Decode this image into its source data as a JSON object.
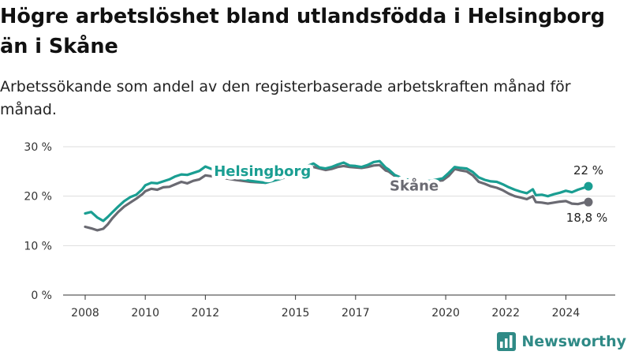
{
  "header": {
    "title": "Högre arbetslöshet bland utlandsfödda i Helsingborg än i Skåne",
    "subtitle": "Arbetssökande som andel av den registerbaserade arbetskraften månad för månad."
  },
  "brand": {
    "name": "Newsworthy",
    "logo_icon": "bar-chart-logo-icon",
    "color": "#2f8a86"
  },
  "chart_data": {
    "type": "line",
    "xlim": [
      2007.9,
      2024.9
    ],
    "ylim": [
      0,
      30
    ],
    "x_ticks": [
      2008,
      2010,
      2012,
      2015,
      2017,
      2020,
      2022,
      2024
    ],
    "x_tick_labels": [
      "2008",
      "2010",
      "2012",
      "2015",
      "2017",
      "2020",
      "2022",
      "2024"
    ],
    "y_ticks": [
      0,
      10,
      20,
      30
    ],
    "y_tick_labels": [
      "0 %",
      "10 %",
      "20 %",
      "30 %"
    ],
    "grid": "horizontal",
    "series": [
      {
        "name": "Helsingborg",
        "color": "#1a9e92",
        "label_at": 2013.9,
        "end_label": "22 %",
        "x": [
          2008.0,
          2008.2,
          2008.4,
          2008.6,
          2008.75,
          2008.9,
          2009.1,
          2009.3,
          2009.5,
          2009.7,
          2009.9,
          2010.0,
          2010.2,
          2010.4,
          2010.6,
          2010.8,
          2011.0,
          2011.2,
          2011.4,
          2011.6,
          2011.8,
          2012.0,
          2012.5,
          2013.0,
          2013.5,
          2014.0,
          2014.5,
          2015.0,
          2015.3,
          2015.6,
          2015.8,
          2016.0,
          2016.2,
          2016.4,
          2016.6,
          2016.8,
          2017.0,
          2017.2,
          2017.4,
          2017.6,
          2017.8,
          2018.0,
          2018.1,
          2018.3,
          2018.6,
          2019.0,
          2019.5,
          2019.9,
          2020.1,
          2020.3,
          2020.5,
          2020.7,
          2020.9,
          2021.1,
          2021.3,
          2021.5,
          2021.7,
          2021.9,
          2022.1,
          2022.3,
          2022.5,
          2022.7,
          2022.9,
          2023.0,
          2023.2,
          2023.4,
          2023.6,
          2023.8,
          2024.0,
          2024.2,
          2024.4,
          2024.6,
          2024.75
        ],
        "y": [
          16.5,
          16.8,
          15.7,
          15.0,
          15.8,
          16.7,
          17.9,
          19.0,
          19.8,
          20.3,
          21.4,
          22.2,
          22.7,
          22.6,
          23.0,
          23.4,
          24.0,
          24.4,
          24.3,
          24.7,
          25.1,
          26.0,
          24.8,
          23.8,
          23.1,
          22.7,
          23.5,
          24.8,
          25.9,
          26.6,
          25.8,
          25.6,
          25.9,
          26.4,
          26.8,
          26.2,
          26.1,
          25.9,
          26.3,
          26.9,
          27.1,
          25.8,
          25.4,
          24.3,
          23.5,
          23.0,
          23.1,
          23.6,
          24.7,
          25.9,
          25.7,
          25.6,
          24.9,
          23.8,
          23.3,
          23.0,
          22.9,
          22.4,
          21.8,
          21.3,
          20.9,
          20.6,
          21.4,
          20.2,
          20.3,
          20.0,
          20.4,
          20.7,
          21.1,
          20.8,
          21.3,
          21.7,
          22.0
        ]
      },
      {
        "name": "Skåne",
        "color": "#6a6a72",
        "label_at": 2018.95,
        "end_label": "18,8 %",
        "x": [
          2008.0,
          2008.2,
          2008.4,
          2008.6,
          2008.75,
          2008.9,
          2009.1,
          2009.3,
          2009.5,
          2009.7,
          2009.9,
          2010.0,
          2010.2,
          2010.4,
          2010.6,
          2010.8,
          2011.0,
          2011.2,
          2011.4,
          2011.6,
          2011.8,
          2012.0,
          2012.5,
          2013.0,
          2013.5,
          2014.0,
          2014.5,
          2015.0,
          2015.3,
          2015.6,
          2015.8,
          2016.0,
          2016.2,
          2016.4,
          2016.6,
          2016.8,
          2017.0,
          2017.2,
          2017.4,
          2017.6,
          2017.8,
          2018.0,
          2018.1,
          2018.3,
          2018.6,
          2019.0,
          2019.5,
          2019.9,
          2020.1,
          2020.3,
          2020.5,
          2020.7,
          2020.9,
          2021.1,
          2021.3,
          2021.5,
          2021.7,
          2021.9,
          2022.1,
          2022.3,
          2022.5,
          2022.7,
          2022.9,
          2023.0,
          2023.2,
          2023.4,
          2023.6,
          2023.8,
          2024.0,
          2024.2,
          2024.4,
          2024.6,
          2024.75
        ],
        "y": [
          13.8,
          13.5,
          13.1,
          13.4,
          14.3,
          15.5,
          16.8,
          17.9,
          18.7,
          19.5,
          20.4,
          21.0,
          21.5,
          21.3,
          21.8,
          21.9,
          22.4,
          22.9,
          22.6,
          23.1,
          23.4,
          24.2,
          23.8,
          23.3,
          22.9,
          22.7,
          23.5,
          24.5,
          25.3,
          25.9,
          25.6,
          25.3,
          25.5,
          25.9,
          26.1,
          25.9,
          25.8,
          25.7,
          25.9,
          26.2,
          26.3,
          25.2,
          25.0,
          24.1,
          23.4,
          23.0,
          23.0,
          23.2,
          24.1,
          25.5,
          25.2,
          25.0,
          24.2,
          22.9,
          22.5,
          22.0,
          21.7,
          21.2,
          20.5,
          20.0,
          19.7,
          19.4,
          20.0,
          18.8,
          18.7,
          18.5,
          18.7,
          18.9,
          19.0,
          18.5,
          18.4,
          18.7,
          18.8
        ]
      }
    ]
  }
}
